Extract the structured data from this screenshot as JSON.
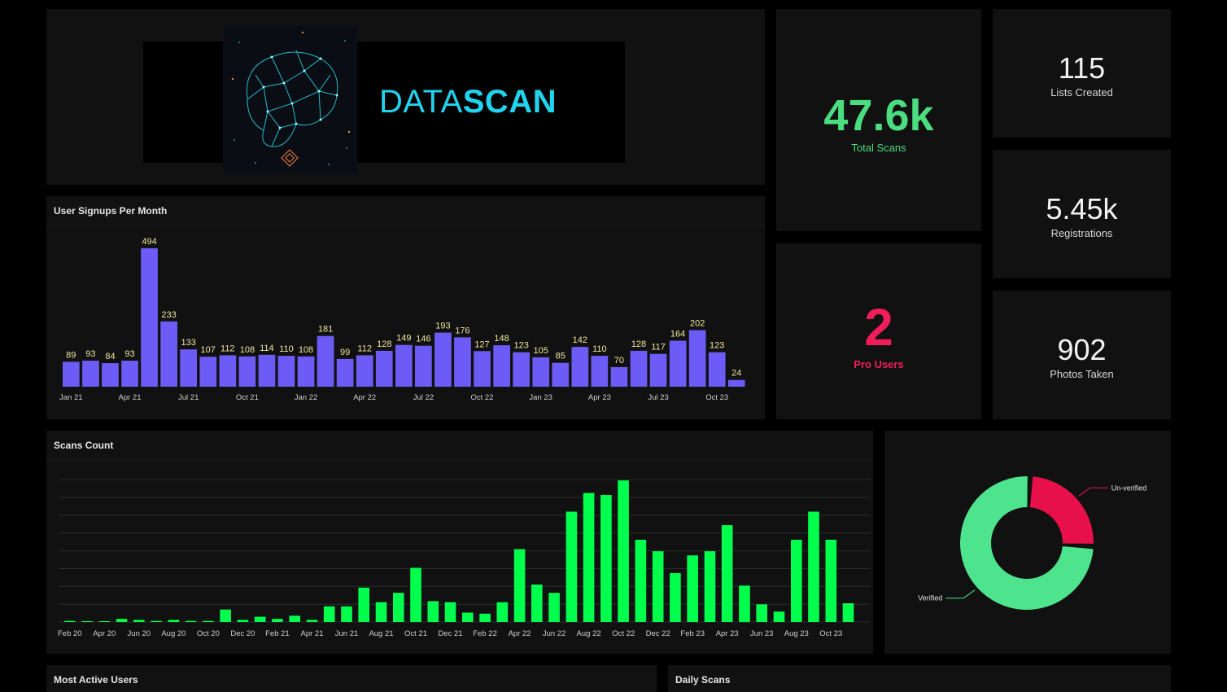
{
  "logo": {
    "text_part1": "DATA",
    "text_part2": "SCAN",
    "accent_color": "#22d3ee"
  },
  "stats": {
    "total_scans": {
      "value": "47.6k",
      "label": "Total Scans",
      "color": "#4ade80"
    },
    "pro_users": {
      "value": "2",
      "label": "Pro Users",
      "color": "#ef1e5a"
    },
    "lists_created": {
      "value": "115",
      "label": "Lists Created"
    },
    "registrations": {
      "value": "5.45k",
      "label": "Registrations"
    },
    "photos_taken": {
      "value": "902",
      "label": "Photos Taken"
    }
  },
  "panels": {
    "signups_title": "User Signups Per Month",
    "scans_title": "Scans Count",
    "most_active_title": "Most Active Users",
    "daily_scans_title": "Daily Scans"
  },
  "chart_data": [
    {
      "type": "bar",
      "title": "User Signups Per Month",
      "color": "#6c5cf5",
      "values": [
        89,
        93,
        84,
        93,
        494,
        233,
        133,
        107,
        112,
        108,
        114,
        110,
        108,
        181,
        99,
        112,
        128,
        149,
        146,
        193,
        176,
        127,
        148,
        123,
        105,
        85,
        142,
        110,
        70,
        128,
        117,
        164,
        202,
        123,
        24
      ],
      "tick_labels": [
        {
          "index": 0,
          "label": "Jan 21"
        },
        {
          "index": 3,
          "label": "Apr 21"
        },
        {
          "index": 6,
          "label": "Jul 21"
        },
        {
          "index": 9,
          "label": "Oct 21"
        },
        {
          "index": 12,
          "label": "Jan 22"
        },
        {
          "index": 15,
          "label": "Apr 22"
        },
        {
          "index": 18,
          "label": "Jul 22"
        },
        {
          "index": 21,
          "label": "Oct 22"
        },
        {
          "index": 24,
          "label": "Jan 23"
        },
        {
          "index": 27,
          "label": "Apr 23"
        },
        {
          "index": 30,
          "label": "Jul 23"
        },
        {
          "index": 33,
          "label": "Oct 23"
        }
      ],
      "ylim": [
        0,
        520
      ]
    },
    {
      "type": "bar",
      "title": "Scans Count",
      "color": "#00ff4c",
      "values": [
        1,
        0,
        0,
        3,
        2,
        1,
        2,
        1,
        1,
        12,
        2,
        5,
        3,
        6,
        2,
        15,
        15,
        33,
        19,
        28,
        52,
        20,
        19,
        9,
        8,
        19,
        70,
        36,
        28,
        106,
        124,
        122,
        136,
        79,
        68,
        47,
        64,
        68,
        93,
        35,
        17,
        10,
        79,
        106,
        79,
        18
      ],
      "tick_labels": [
        {
          "index": 0,
          "label": "Feb 20"
        },
        {
          "index": 2,
          "label": "Apr 20"
        },
        {
          "index": 4,
          "label": "Jun 20"
        },
        {
          "index": 6,
          "label": "Aug 20"
        },
        {
          "index": 8,
          "label": "Oct 20"
        },
        {
          "index": 10,
          "label": "Dec 20"
        },
        {
          "index": 12,
          "label": "Feb 21"
        },
        {
          "index": 14,
          "label": "Apr 21"
        },
        {
          "index": 16,
          "label": "Jun 21"
        },
        {
          "index": 18,
          "label": "Aug 21"
        },
        {
          "index": 20,
          "label": "Oct 21"
        },
        {
          "index": 22,
          "label": "Dec 21"
        },
        {
          "index": 24,
          "label": "Feb 22"
        },
        {
          "index": 26,
          "label": "Apr 22"
        },
        {
          "index": 28,
          "label": "Jun 22"
        },
        {
          "index": 30,
          "label": "Aug 22"
        },
        {
          "index": 32,
          "label": "Oct 22"
        },
        {
          "index": 34,
          "label": "Dec 22"
        },
        {
          "index": 36,
          "label": "Feb 23"
        },
        {
          "index": 38,
          "label": "Apr 23"
        },
        {
          "index": 40,
          "label": "Jun 23"
        },
        {
          "index": 42,
          "label": "Aug 23"
        },
        {
          "index": 44,
          "label": "Oct 23"
        }
      ],
      "ylim": [
        0,
        140
      ],
      "grid": true
    },
    {
      "type": "pie",
      "donut": true,
      "slices": [
        {
          "name": "Un-verified",
          "value": 25,
          "color": "#e8104a"
        },
        {
          "name": "Verified",
          "value": 75,
          "color": "#4ee38d"
        }
      ]
    }
  ]
}
